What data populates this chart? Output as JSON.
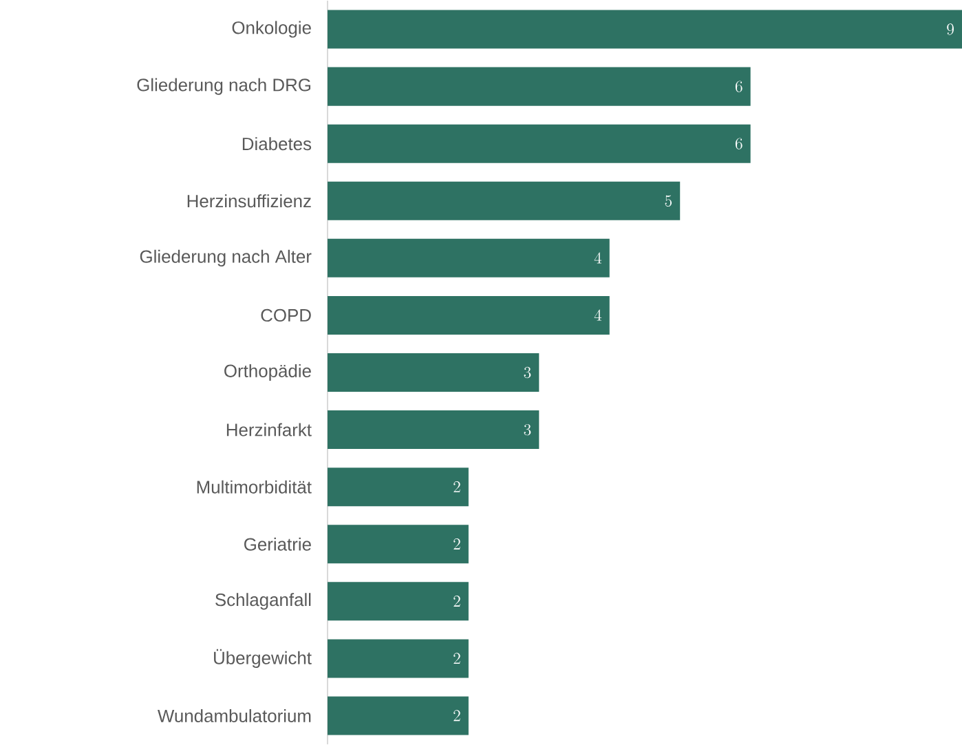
{
  "chart_data": {
    "type": "bar",
    "orientation": "horizontal",
    "data_labels": true,
    "color": "#2e7263",
    "categories": [
      "Onkologie",
      "Gliederung nach DRG",
      "Diabetes",
      "Herzinsuffizienz",
      "Gliederung nach Alter",
      "COPD",
      "Orthopädie",
      "Herzinfarkt",
      "Multimorbidität",
      "Geriatrie",
      "Schlaganfall",
      "Übergewicht",
      "Wundambulatorium"
    ],
    "values": [
      9,
      6,
      6,
      5,
      4,
      4,
      3,
      3,
      2,
      2,
      2,
      2,
      2
    ]
  }
}
